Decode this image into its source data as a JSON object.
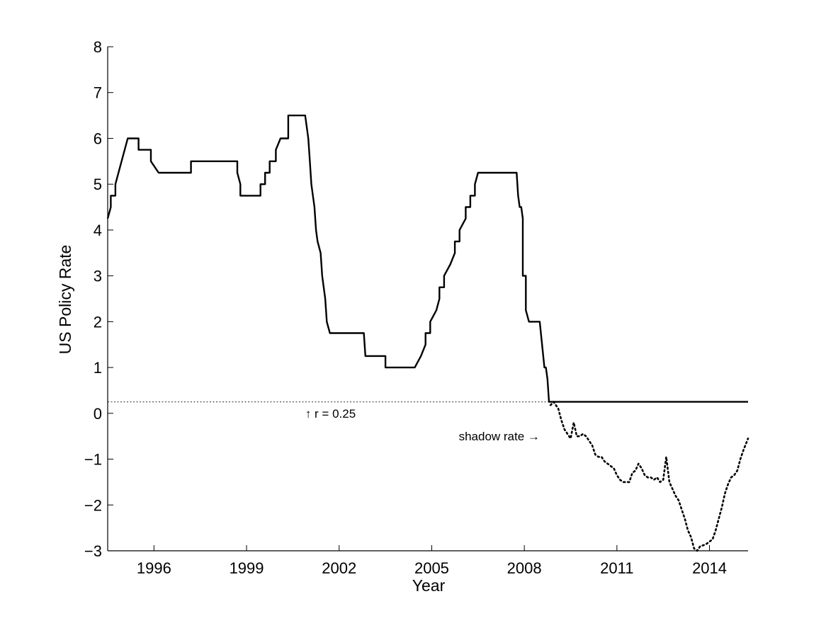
{
  "chart_data": {
    "type": "line",
    "title": "",
    "xlabel": "Year",
    "ylabel": "US Policy Rate",
    "xlim": [
      1994.5,
      2015.25
    ],
    "ylim": [
      -3,
      8
    ],
    "x_ticks": [
      1996,
      1999,
      2002,
      2005,
      2008,
      2011,
      2014
    ],
    "x_tick_labels": [
      "1996",
      "1999",
      "2002",
      "2005",
      "2008",
      "2011",
      "2014"
    ],
    "y_ticks": [
      8,
      7,
      6,
      5,
      4,
      3,
      2,
      1,
      0,
      -1,
      -2,
      -3
    ],
    "y_tick_labels": [
      "8",
      "7",
      "6",
      "5",
      "4",
      "3",
      "2",
      "1",
      "0",
      "−1",
      "−2",
      "−3"
    ],
    "grid": false,
    "reference_line": {
      "y": 0.25,
      "style": "dotted",
      "color": "#555555"
    },
    "annotations": [
      {
        "text": "↑ r = 0.25",
        "x": 2000.9,
        "y": 0.0
      },
      {
        "text": "shadow rate →",
        "x": 2008.5,
        "y": -0.5
      }
    ],
    "series": [
      {
        "style": "solid",
        "color": "#000000",
        "x": [
          1994.5,
          1994.6,
          1994.6,
          1994.75,
          1994.75,
          1994.95,
          1994.95,
          1995.15,
          1995.15,
          1995.5,
          1995.5,
          1995.9,
          1995.9,
          1996.15,
          1996.15,
          1997.2,
          1997.2,
          1998.7,
          1998.7,
          1998.8,
          1998.8,
          1998.95,
          1998.95,
          1999.45,
          1999.45,
          1999.6,
          1999.6,
          1999.75,
          1999.75,
          1999.95,
          1999.95,
          2000.1,
          2000.1,
          2000.35,
          2000.35,
          2000.9,
          2000.9,
          2001.0,
          2001.05,
          2001.1,
          2001.2,
          2001.25,
          2001.3,
          2001.4,
          2001.45,
          2001.55,
          2001.6,
          2001.7,
          2001.75,
          2001.9,
          2001.95,
          2002.8,
          2002.85,
          2003.5,
          2003.5,
          2004.45,
          2004.45,
          2004.65,
          2004.65,
          2004.8,
          2004.8,
          2004.95,
          2004.95,
          2005.15,
          2005.15,
          2005.25,
          2005.25,
          2005.4,
          2005.4,
          2005.6,
          2005.6,
          2005.75,
          2005.75,
          2005.9,
          2005.9,
          2006.1,
          2006.1,
          2006.25,
          2006.25,
          2006.4,
          2006.4,
          2006.5,
          2006.5,
          2007.7,
          2007.7,
          2007.75,
          2007.8,
          2007.85,
          2007.9,
          2007.95,
          2007.95,
          2008.05,
          2008.05,
          2008.15,
          2008.15,
          2008.25,
          2008.25,
          2008.5,
          2008.5,
          2008.65,
          2008.7,
          2008.75,
          2008.8,
          2008.85,
          2008.9,
          2015.25
        ],
        "y": [
          4.25,
          4.5,
          4.75,
          4.75,
          5.0,
          5.5,
          5.5,
          6.0,
          6.0,
          6.0,
          5.75,
          5.75,
          5.5,
          5.25,
          5.25,
          5.25,
          5.5,
          5.5,
          5.25,
          5.0,
          4.75,
          4.75,
          4.75,
          4.75,
          5.0,
          5.0,
          5.25,
          5.25,
          5.5,
          5.5,
          5.75,
          6.0,
          6.0,
          6.0,
          6.5,
          6.5,
          6.5,
          6.0,
          5.5,
          5.0,
          4.5,
          4.0,
          3.75,
          3.5,
          3.0,
          2.5,
          2.0,
          1.75,
          1.75,
          1.75,
          1.75,
          1.75,
          1.25,
          1.25,
          1.0,
          1.0,
          1.0,
          1.25,
          1.25,
          1.5,
          1.75,
          1.75,
          2.0,
          2.25,
          2.25,
          2.5,
          2.75,
          2.75,
          3.0,
          3.25,
          3.25,
          3.5,
          3.75,
          3.75,
          4.0,
          4.25,
          4.5,
          4.5,
          4.75,
          4.75,
          5.0,
          5.25,
          5.25,
          5.25,
          5.25,
          5.25,
          4.75,
          4.5,
          4.5,
          4.25,
          3.0,
          3.0,
          2.25,
          2.0,
          2.0,
          2.0,
          2.0,
          2.0,
          2.0,
          1.0,
          1.0,
          0.75,
          0.25,
          0.25,
          0.25,
          0.25
        ]
      },
      {
        "name": "shadow rate",
        "style": "dotted",
        "color": "#000000",
        "x": [
          2008.85,
          2008.95,
          2009.1,
          2009.2,
          2009.3,
          2009.4,
          2009.5,
          2009.6,
          2009.7,
          2009.8,
          2009.9,
          2010.0,
          2010.1,
          2010.2,
          2010.3,
          2010.4,
          2010.5,
          2010.6,
          2010.7,
          2010.8,
          2010.9,
          2011.0,
          2011.1,
          2011.2,
          2011.3,
          2011.4,
          2011.5,
          2011.6,
          2011.7,
          2011.8,
          2011.9,
          2012.0,
          2012.1,
          2012.2,
          2012.3,
          2012.4,
          2012.5,
          2012.6,
          2012.7,
          2012.8,
          2012.9,
          2013.0,
          2013.1,
          2013.2,
          2013.3,
          2013.4,
          2013.5,
          2013.6,
          2013.7,
          2013.8,
          2013.9,
          2014.0,
          2014.1,
          2014.2,
          2014.3,
          2014.4,
          2014.5,
          2014.6,
          2014.7,
          2014.8,
          2014.9,
          2015.0,
          2015.1,
          2015.25
        ],
        "y": [
          0.18,
          0.25,
          0.1,
          -0.15,
          -0.35,
          -0.45,
          -0.55,
          -0.2,
          -0.5,
          -0.5,
          -0.45,
          -0.5,
          -0.6,
          -0.7,
          -0.9,
          -0.95,
          -0.95,
          -1.05,
          -1.1,
          -1.15,
          -1.2,
          -1.35,
          -1.45,
          -1.5,
          -1.5,
          -1.5,
          -1.3,
          -1.25,
          -1.1,
          -1.2,
          -1.35,
          -1.4,
          -1.4,
          -1.45,
          -1.4,
          -1.5,
          -1.45,
          -0.95,
          -1.5,
          -1.65,
          -1.8,
          -1.9,
          -2.1,
          -2.3,
          -2.55,
          -2.7,
          -2.95,
          -3.0,
          -2.9,
          -2.88,
          -2.85,
          -2.8,
          -2.75,
          -2.55,
          -2.3,
          -2.05,
          -1.75,
          -1.55,
          -1.4,
          -1.35,
          -1.25,
          -1.0,
          -0.8,
          -0.55
        ]
      }
    ]
  }
}
